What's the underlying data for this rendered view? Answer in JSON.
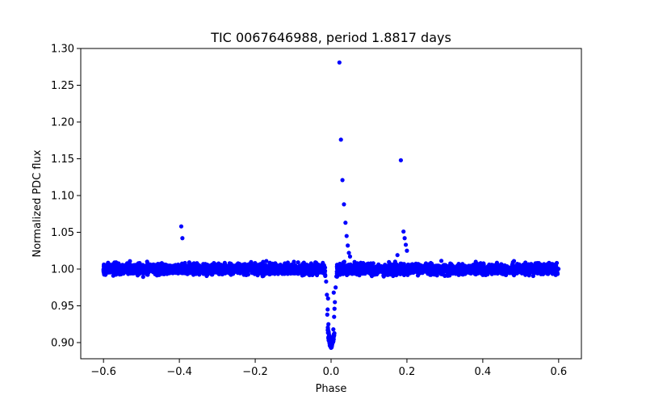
{
  "chart_data": {
    "type": "scatter",
    "title": "TIC 0067646988, period 1.8817 days",
    "xlabel": "Phase",
    "ylabel": "Normalized PDC flux",
    "xlim": [
      -0.66,
      0.66
    ],
    "ylim": [
      0.878,
      1.3
    ],
    "xticks": [
      -0.6,
      -0.4,
      -0.2,
      0.0,
      0.2,
      0.4,
      0.6
    ],
    "xtick_labels": [
      "−0.6",
      "−0.4",
      "−0.2",
      "0.0",
      "0.2",
      "0.4",
      "0.6"
    ],
    "yticks": [
      0.9,
      0.95,
      1.0,
      1.05,
      1.1,
      1.15,
      1.2,
      1.25,
      1.3
    ],
    "ytick_labels": [
      "0.90",
      "0.95",
      "1.00",
      "1.05",
      "1.10",
      "1.15",
      "1.20",
      "1.25",
      "1.30"
    ],
    "marker_color": "#0000ff",
    "grid": false,
    "series": [
      {
        "name": "flux",
        "baseline": {
          "phase_range": [
            -0.6,
            0.6
          ],
          "center": 1.0,
          "scatter": 0.006
        },
        "transit": {
          "center_phase": 0.0,
          "depth_min": 0.893,
          "half_width": 0.015
        },
        "points": [
          {
            "x": 0.022,
            "y": 1.281
          },
          {
            "x": 0.026,
            "y": 1.176
          },
          {
            "x": 0.03,
            "y": 1.121
          },
          {
            "x": 0.034,
            "y": 1.088
          },
          {
            "x": 0.038,
            "y": 1.063
          },
          {
            "x": 0.041,
            "y": 1.045
          },
          {
            "x": 0.044,
            "y": 1.032
          },
          {
            "x": 0.047,
            "y": 1.022
          },
          {
            "x": 0.05,
            "y": 1.017
          },
          {
            "x": 0.184,
            "y": 1.148
          },
          {
            "x": 0.191,
            "y": 1.051
          },
          {
            "x": 0.194,
            "y": 1.042
          },
          {
            "x": 0.197,
            "y": 1.033
          },
          {
            "x": 0.2,
            "y": 1.025
          },
          {
            "x": 0.175,
            "y": 1.019
          },
          {
            "x": -0.395,
            "y": 1.058
          },
          {
            "x": -0.392,
            "y": 1.042
          },
          {
            "x": 0.0,
            "y": 0.893
          },
          {
            "x": 0.002,
            "y": 0.895
          },
          {
            "x": -0.003,
            "y": 0.9
          },
          {
            "x": 0.004,
            "y": 0.905
          },
          {
            "x": -0.005,
            "y": 0.91
          },
          {
            "x": 0.006,
            "y": 0.918
          },
          {
            "x": -0.007,
            "y": 0.925
          },
          {
            "x": 0.008,
            "y": 0.935
          },
          {
            "x": -0.009,
            "y": 0.945
          },
          {
            "x": 0.01,
            "y": 0.955
          },
          {
            "x": -0.011,
            "y": 0.965
          },
          {
            "x": 0.012,
            "y": 0.975
          },
          {
            "x": -0.013,
            "y": 0.983
          },
          {
            "x": 0.014,
            "y": 0.99
          },
          {
            "x": -0.01,
            "y": 0.938
          },
          {
            "x": 0.009,
            "y": 0.946
          },
          {
            "x": -0.008,
            "y": 0.96
          },
          {
            "x": 0.007,
            "y": 0.968
          }
        ]
      }
    ]
  }
}
